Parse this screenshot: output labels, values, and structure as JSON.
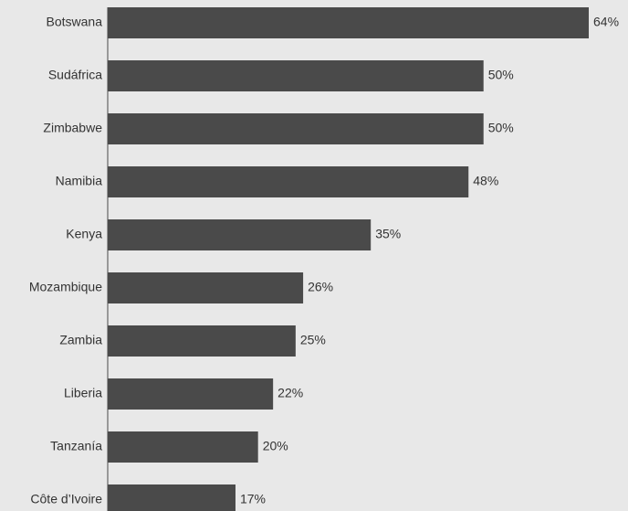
{
  "chart_data": {
    "type": "bar",
    "orientation": "horizontal",
    "categories": [
      "Botswana",
      "Sudáfrica",
      "Zimbabwe",
      "Namibia",
      "Kenya",
      "Mozambique",
      "Zambia",
      "Liberia",
      "Tanzanía",
      "Côte d’Ivoire"
    ],
    "values": [
      64,
      50,
      50,
      48,
      35,
      26,
      25,
      22,
      20,
      17
    ],
    "value_labels": [
      "64%",
      "50%",
      "50%",
      "48%",
      "35%",
      "26%",
      "25%",
      "22%",
      "20%",
      "17%"
    ],
    "unit": "%",
    "title": "",
    "xlabel": "",
    "ylabel": "",
    "xlim": [
      0,
      64
    ],
    "grid": false,
    "legend": "none",
    "bar_color": "#4a4a4a",
    "background_color": "#e8e8e8",
    "text_color": "#333333"
  }
}
